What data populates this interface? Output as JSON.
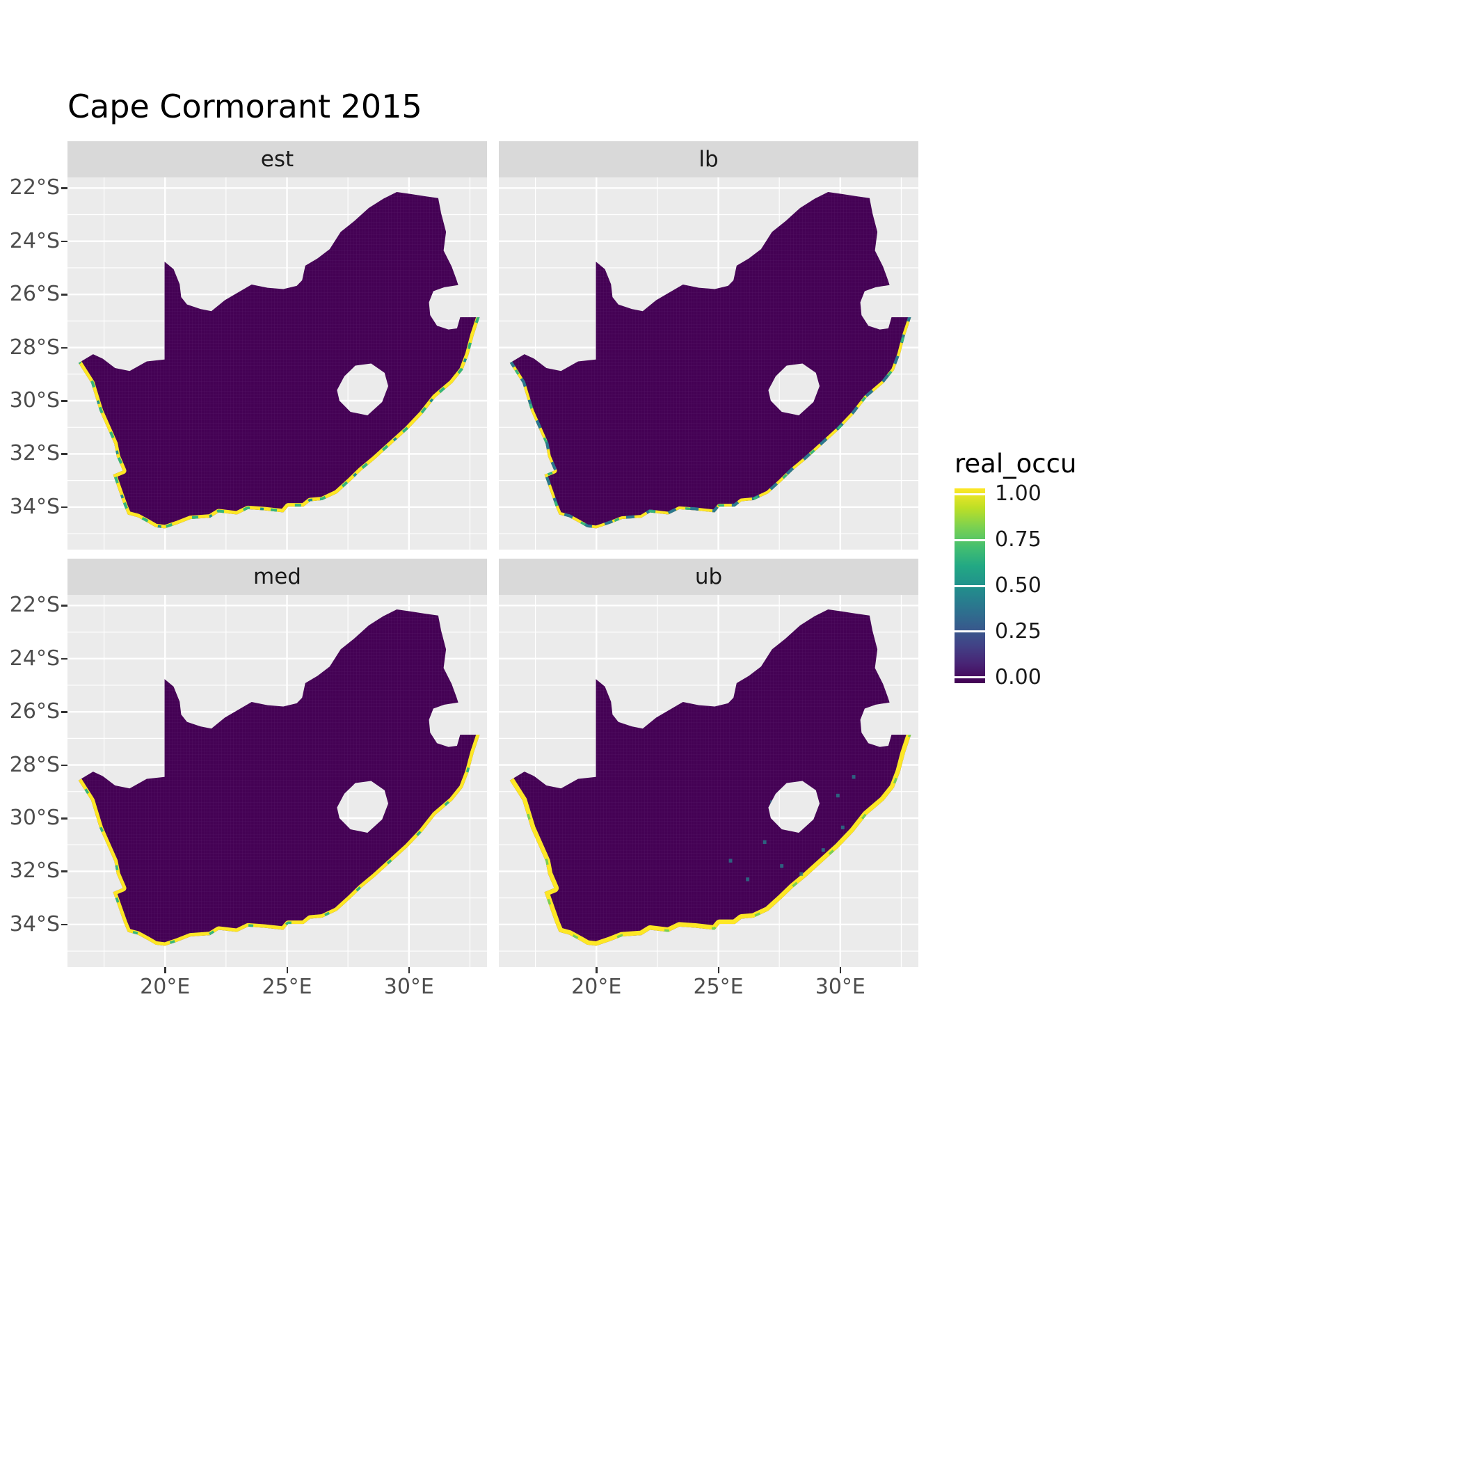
{
  "title": "Cape Cormorant 2015",
  "chart_data": {
    "type": "heatmap",
    "subtype": "faceted-raster-map",
    "region": "South Africa",
    "description": "Occupancy probability (real_occu) raster over South Africa. Interior cells ~0.00 (dark purple); coastal cells ~1.00 (yellow) with scattered green/teal intermediate values along the coastline. Four facets show estimate and bounds.",
    "facets": [
      {
        "label": "est"
      },
      {
        "label": "lb"
      },
      {
        "label": "med"
      },
      {
        "label": "ub"
      }
    ],
    "fill_variable": "real_occu",
    "fill_range": [
      0,
      1
    ],
    "interior_value": 0.0,
    "coastal_value": 1.0,
    "x_ticks": [
      "20°E",
      "25°E",
      "30°E"
    ],
    "x_tick_lons": [
      20,
      25,
      30
    ],
    "x_minor_lons": [
      17.5,
      22.5,
      27.5,
      32.5
    ],
    "y_ticks": [
      "22°S",
      "24°S",
      "26°S",
      "28°S",
      "30°S",
      "32°S",
      "34°S"
    ],
    "y_tick_lats": [
      22,
      24,
      26,
      28,
      30,
      32,
      34
    ],
    "y_minor_lats": [
      23,
      25,
      27,
      29,
      31,
      33,
      35
    ],
    "lon_range": [
      16.0,
      33.2
    ],
    "lat_range": [
      -35.6,
      -21.6
    ],
    "grid": "on",
    "legend": {
      "title": "real_occu",
      "position": "right",
      "labels": [
        "1.00",
        "0.75",
        "0.50",
        "0.25",
        "0.00"
      ],
      "values": [
        1,
        0.75,
        0.5,
        0.25,
        0
      ]
    },
    "colors": {
      "viridis_0": "#440154",
      "viridis_025": "#3B528B",
      "viridis_05": "#21918C",
      "viridis_075": "#5EC962",
      "viridis_1": "#FDE725",
      "panel_bg": "#EBEBEB",
      "strip_bg": "#D9D9D9",
      "gridline": "#FFFFFF",
      "axis_text": "#4D4D4D"
    },
    "map_outline": {
      "outer": [
        [
          16.45,
          -28.58
        ],
        [
          17.05,
          -28.25
        ],
        [
          17.45,
          -28.42
        ],
        [
          17.95,
          -28.77
        ],
        [
          18.55,
          -28.88
        ],
        [
          19.25,
          -28.52
        ],
        [
          19.98,
          -28.45
        ],
        [
          19.98,
          -24.77
        ],
        [
          20.35,
          -25.05
        ],
        [
          20.6,
          -25.62
        ],
        [
          20.66,
          -26.1
        ],
        [
          20.9,
          -26.38
        ],
        [
          21.45,
          -26.55
        ],
        [
          21.9,
          -26.63
        ],
        [
          22.45,
          -26.22
        ],
        [
          22.95,
          -25.95
        ],
        [
          23.55,
          -25.63
        ],
        [
          24.2,
          -25.75
        ],
        [
          24.85,
          -25.8
        ],
        [
          25.4,
          -25.68
        ],
        [
          25.62,
          -25.47
        ],
        [
          25.75,
          -24.92
        ],
        [
          26.25,
          -24.65
        ],
        [
          26.75,
          -24.3
        ],
        [
          27.2,
          -23.65
        ],
        [
          27.75,
          -23.25
        ],
        [
          28.35,
          -22.75
        ],
        [
          28.95,
          -22.4
        ],
        [
          29.5,
          -22.15
        ],
        [
          30.05,
          -22.22
        ],
        [
          30.6,
          -22.3
        ],
        [
          31.2,
          -22.38
        ],
        [
          31.32,
          -22.95
        ],
        [
          31.52,
          -23.65
        ],
        [
          31.42,
          -24.35
        ],
        [
          31.75,
          -24.95
        ],
        [
          31.95,
          -25.45
        ],
        [
          32.02,
          -25.65
        ],
        [
          31.45,
          -25.73
        ],
        [
          31.0,
          -25.88
        ],
        [
          30.82,
          -26.3
        ],
        [
          30.87,
          -26.78
        ],
        [
          31.15,
          -27.18
        ],
        [
          31.62,
          -27.32
        ],
        [
          31.97,
          -27.28
        ],
        [
          32.1,
          -26.86
        ],
        [
          32.55,
          -26.86
        ],
        [
          32.9,
          -26.86
        ],
        [
          32.65,
          -27.55
        ],
        [
          32.45,
          -28.25
        ],
        [
          32.2,
          -28.85
        ],
        [
          31.78,
          -29.33
        ],
        [
          31.08,
          -29.88
        ],
        [
          30.55,
          -30.5
        ],
        [
          29.95,
          -31.08
        ],
        [
          29.3,
          -31.62
        ],
        [
          28.6,
          -32.2
        ],
        [
          28.05,
          -32.62
        ],
        [
          27.6,
          -33.02
        ],
        [
          27.05,
          -33.48
        ],
        [
          26.45,
          -33.74
        ],
        [
          25.95,
          -33.78
        ],
        [
          25.68,
          -33.98
        ],
        [
          25.05,
          -33.98
        ],
        [
          24.85,
          -34.2
        ],
        [
          24.05,
          -34.12
        ],
        [
          23.4,
          -34.08
        ],
        [
          22.95,
          -34.28
        ],
        [
          22.2,
          -34.2
        ],
        [
          21.85,
          -34.4
        ],
        [
          21.05,
          -34.45
        ],
        [
          20.55,
          -34.63
        ],
        [
          20.0,
          -34.8
        ],
        [
          19.62,
          -34.76
        ],
        [
          19.32,
          -34.6
        ],
        [
          18.88,
          -34.38
        ],
        [
          18.47,
          -34.28
        ],
        [
          18.32,
          -33.95
        ],
        [
          18.07,
          -33.3
        ],
        [
          17.87,
          -32.78
        ],
        [
          18.27,
          -32.63
        ],
        [
          18.02,
          -32.1
        ],
        [
          17.92,
          -31.62
        ],
        [
          17.32,
          -30.38
        ],
        [
          16.97,
          -29.33
        ]
      ],
      "coast_start_index": 47,
      "lesotho_hole": [
        [
          27.05,
          -29.6
        ],
        [
          27.35,
          -29.08
        ],
        [
          27.8,
          -28.68
        ],
        [
          28.45,
          -28.6
        ],
        [
          29.0,
          -28.95
        ],
        [
          29.15,
          -29.45
        ],
        [
          28.9,
          -30.05
        ],
        [
          28.3,
          -30.55
        ],
        [
          27.6,
          -30.42
        ],
        [
          27.15,
          -30.0
        ]
      ]
    },
    "ub_inland_speckles": [
      [
        26.9,
        -30.9
      ],
      [
        27.6,
        -31.8
      ],
      [
        28.4,
        -32.1
      ],
      [
        29.3,
        -31.2
      ],
      [
        30.1,
        -30.35
      ],
      [
        28.0,
        -30.2
      ],
      [
        29.9,
        -29.15
      ],
      [
        26.2,
        -32.3
      ],
      [
        30.55,
        -28.45
      ],
      [
        27.2,
        -29.4
      ],
      [
        29.0,
        -33.0
      ],
      [
        25.5,
        -31.6
      ]
    ]
  }
}
